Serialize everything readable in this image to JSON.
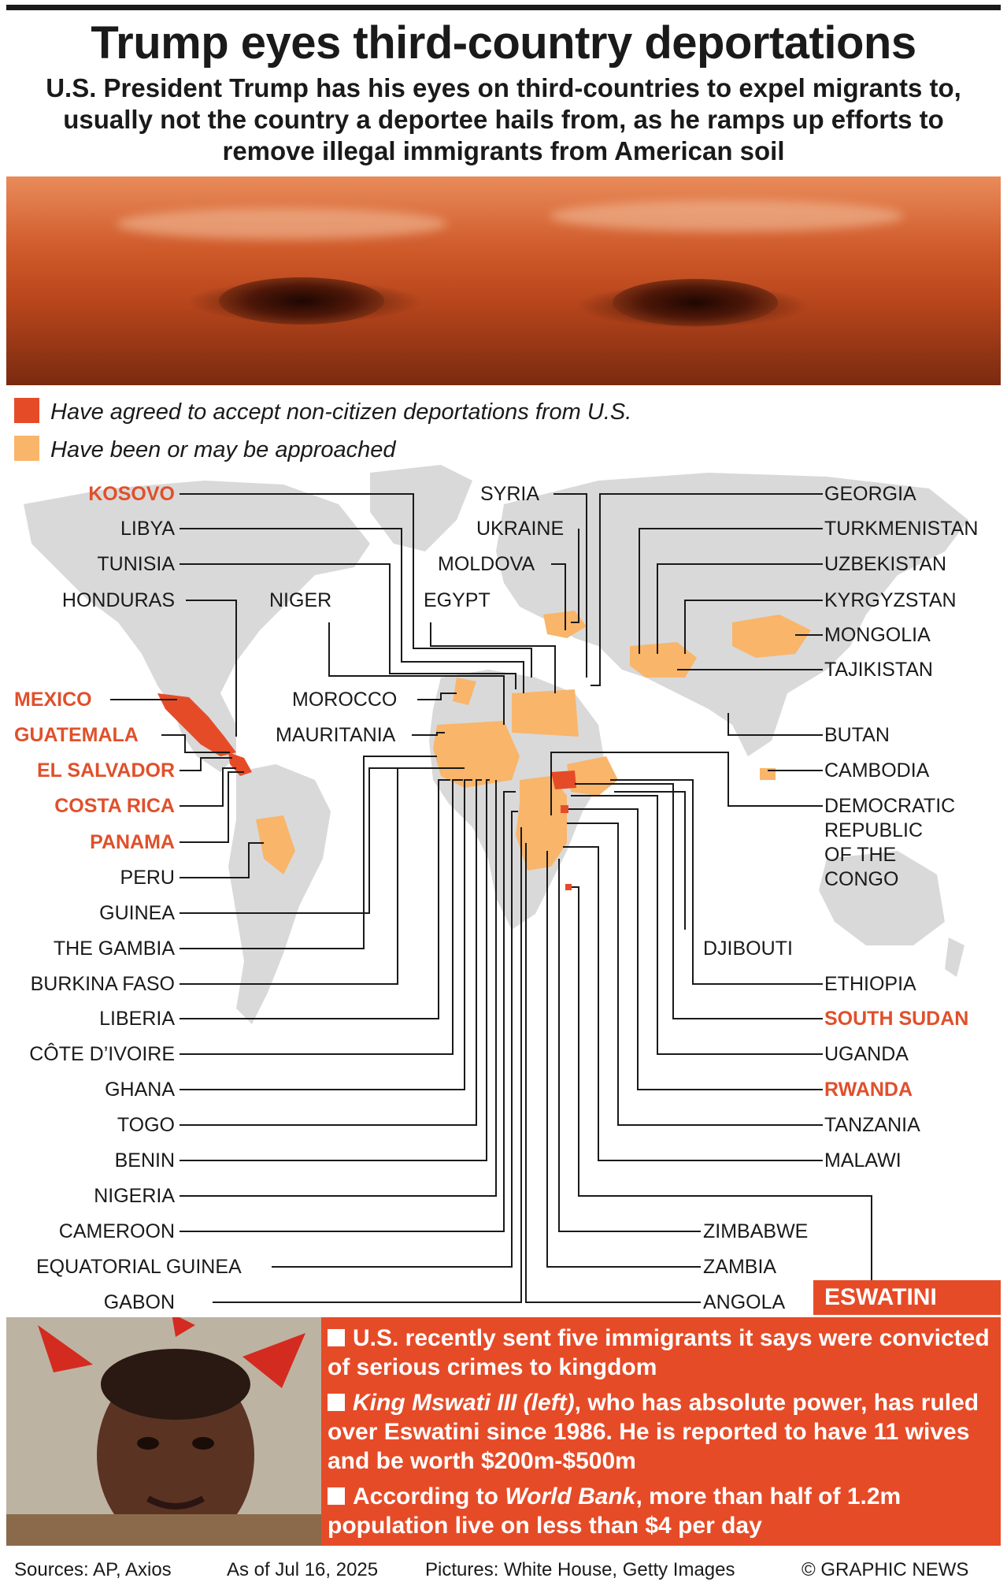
{
  "header": {
    "title": "Trump eyes third-country deportations",
    "subtitle": "U.S. President Trump has his eyes on third-countries to expel migrants to, usually not the country a deportee hails from, as he ramps up efforts to remove illegal immigrants from American soil"
  },
  "legend": {
    "agreed_label": "Have agreed to accept non-citizen deportations from U.S.",
    "agreed_color": "#e64b27",
    "approached_label": "Have been or may be approached",
    "approached_color": "#f9b56a"
  },
  "map": {
    "left_labels": [
      "KOSOVO",
      "LIBYA",
      "TUNISIA",
      "HONDURAS",
      "MEXICO",
      "GUATEMALA",
      "EL SALVADOR",
      "COSTA RICA",
      "PANAMA",
      "PERU",
      "GUINEA",
      "THE GAMBIA",
      "BURKINA FASO",
      "LIBERIA",
      "CÔTE D’IVOIRE",
      "GHANA",
      "TOGO",
      "BENIN",
      "NIGERIA",
      "CAMEROON",
      "EQUATORIAL GUINEA",
      "GABON"
    ],
    "center_labels": [
      "SYRIA",
      "UKRAINE",
      "MOLDOVA",
      "NIGER",
      "EGYPT",
      "MOROCCO",
      "MAURITANIA",
      "DJIBOUTI",
      "ZIMBABWE",
      "ZAMBIA",
      "ANGOLA"
    ],
    "right_labels": [
      "GEORGIA",
      "TURKMENISTAN",
      "UZBEKISTAN",
      "KYRGYZSTAN",
      "MONGOLIA",
      "TAJIKISTAN",
      "BUTAN",
      "CAMBODIA",
      "DEMOCRATIC",
      "REPUBLIC",
      "OF THE",
      "CONGO",
      "ETHIOPIA",
      "SOUTH SUDAN",
      "UGANDA",
      "RWANDA",
      "TANZANIA",
      "MALAWI"
    ],
    "agreed_countries": [
      "KOSOVO",
      "MEXICO",
      "GUATEMALA",
      "EL SALVADOR",
      "COSTA RICA",
      "PANAMA",
      "SOUTH SUDAN",
      "RWANDA",
      "ESWATINI"
    ]
  },
  "eswatini": {
    "tab_label": "ESWATINI",
    "bullet1": "U.S. recently sent five immigrants it says were convicted of serious crimes to kingdom",
    "bullet2_italic": "King Mswati III (left)",
    "bullet2_rest": ", who has absolute power, has ruled over Eswatini since 1986. He is reported to have 11 wives and be worth $200m-$500m",
    "bullet3_start": "According to ",
    "bullet3_italic": "World Bank",
    "bullet3_rest": ", more than half of 1.2m population live on less than $4 per day"
  },
  "footer": {
    "sources": "Sources: AP, Axios",
    "date": "As of Jul 16, 2025",
    "pictures": "Pictures: White House, Getty Images",
    "credit": "© GRAPHIC NEWS"
  }
}
